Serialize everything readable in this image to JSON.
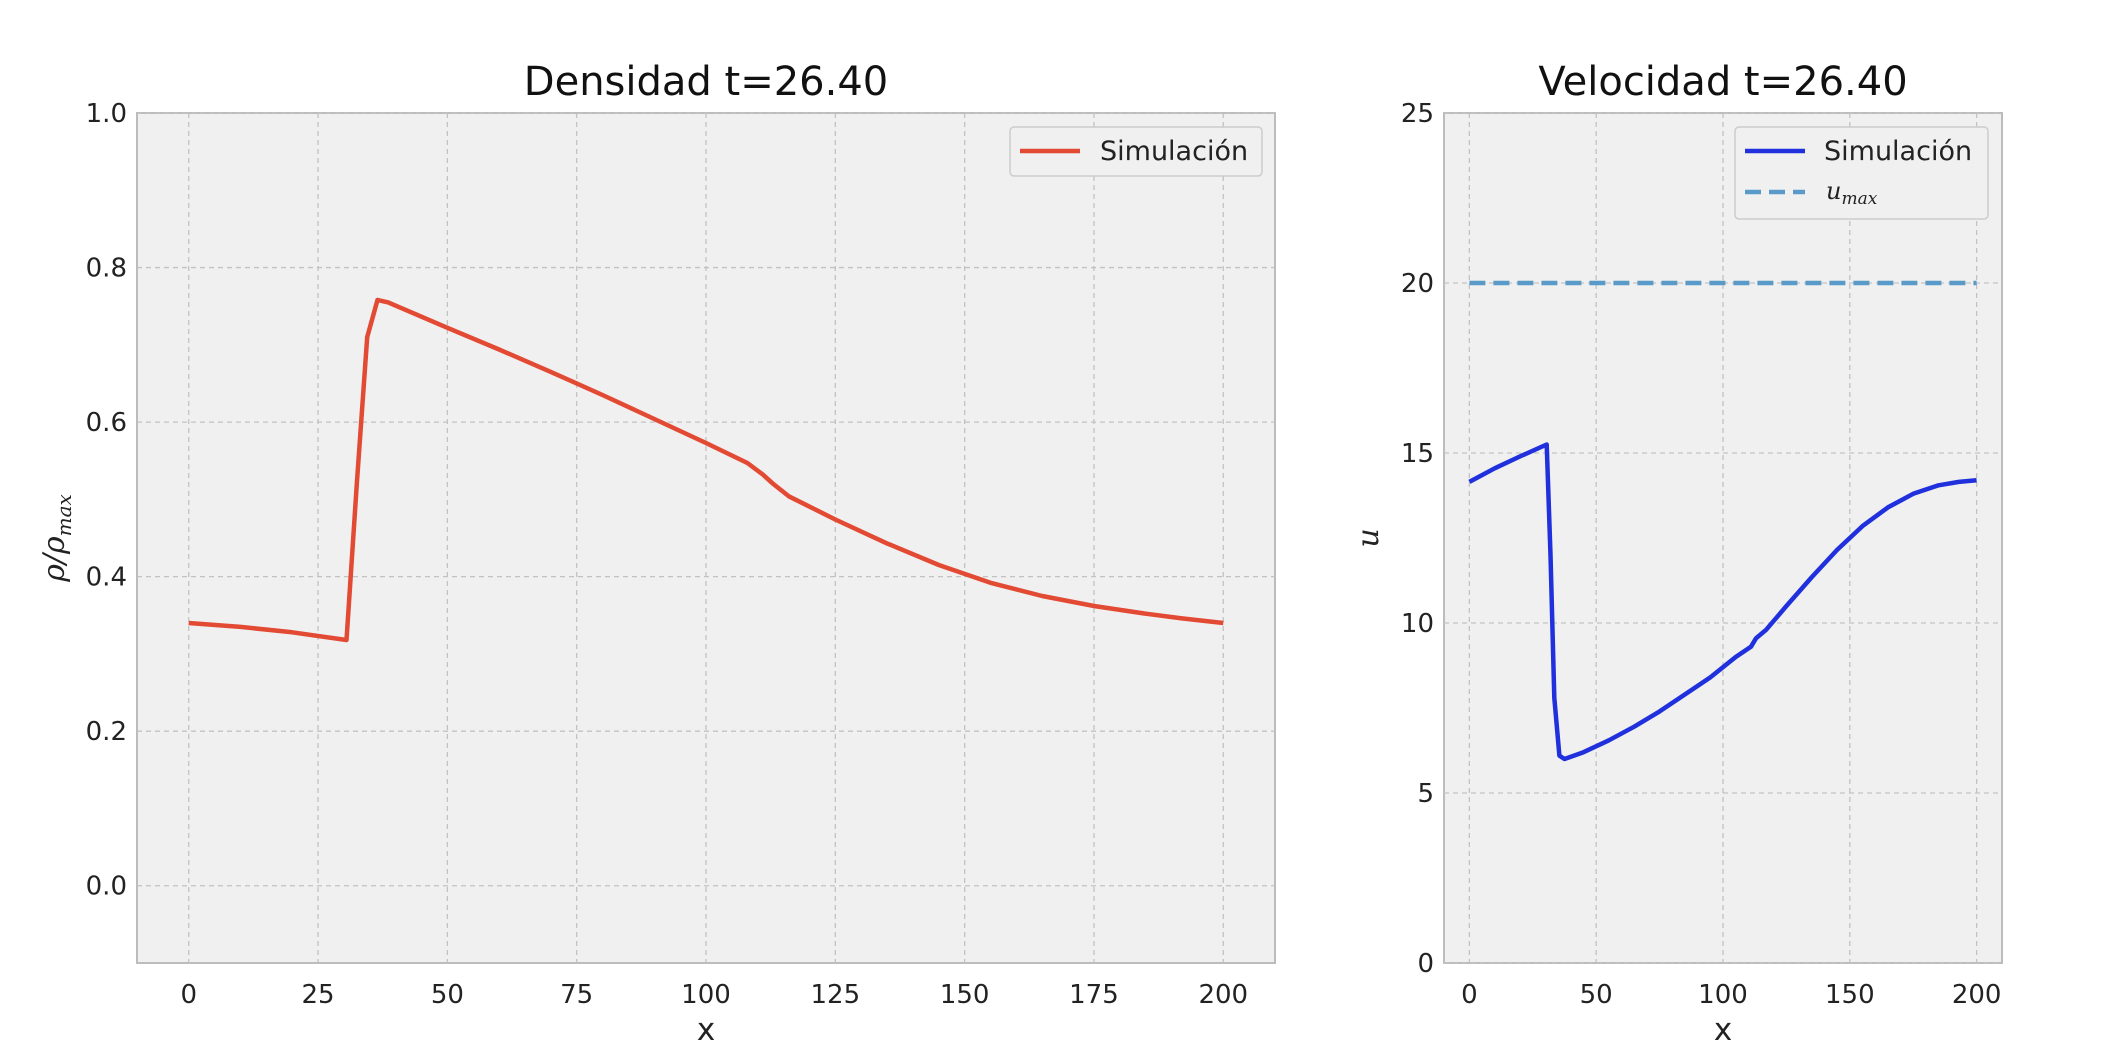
{
  "chart_data": [
    {
      "type": "line",
      "title": "Densidad t=26.40",
      "xlabel": "x",
      "ylabel": "ρ/ρ",
      "ylabel_sub": "max",
      "xlim": [
        -10,
        210
      ],
      "ylim": [
        -0.1,
        1.0
      ],
      "xticks": [
        0,
        25,
        50,
        75,
        100,
        125,
        150,
        175,
        200
      ],
      "yticks": [
        0.0,
        0.2,
        0.4,
        0.6,
        0.8,
        1.0
      ],
      "xtick_labels": [
        "0",
        "25",
        "50",
        "75",
        "100",
        "125",
        "150",
        "175",
        "200"
      ],
      "ytick_labels": [
        "0.0",
        "0.2",
        "0.4",
        "0.6",
        "0.8",
        "1.0"
      ],
      "grid": true,
      "legend": "top-right",
      "series": [
        {
          "name": "Simulación",
          "color": "#e24a33",
          "style": "solid",
          "x": [
            0,
            10,
            20,
            30.5,
            32.5,
            34.5,
            36.5,
            38.5,
            50,
            60,
            70,
            80,
            90,
            100,
            108,
            111,
            113,
            116,
            125,
            135,
            145,
            155,
            165,
            175,
            185,
            192,
            200
          ],
          "y": [
            0.34,
            0.335,
            0.328,
            0.318,
            0.52,
            0.71,
            0.758,
            0.755,
            0.722,
            0.694,
            0.665,
            0.635,
            0.604,
            0.573,
            0.547,
            0.532,
            0.52,
            0.504,
            0.474,
            0.443,
            0.415,
            0.392,
            0.375,
            0.362,
            0.352,
            0.346,
            0.34
          ]
        }
      ]
    },
    {
      "type": "line",
      "title": "Velocidad t=26.40",
      "xlabel": "x",
      "ylabel": "u",
      "xlim": [
        -10,
        210
      ],
      "ylim": [
        0,
        25
      ],
      "xticks": [
        0,
        50,
        100,
        150,
        200
      ],
      "yticks": [
        0,
        5,
        10,
        15,
        20,
        25
      ],
      "xtick_labels": [
        "0",
        "50",
        "100",
        "150",
        "200"
      ],
      "ytick_labels": [
        "0",
        "5",
        "10",
        "15",
        "20",
        "25"
      ],
      "grid": true,
      "legend": "top-right",
      "series": [
        {
          "name": "Simulación",
          "color": "#1f30dc",
          "style": "solid",
          "x": [
            0,
            10,
            20,
            30.5,
            32,
            33.5,
            35.5,
            37.5,
            45,
            55,
            65,
            75,
            85,
            95,
            105,
            111,
            113,
            117,
            125,
            135,
            145,
            155,
            165,
            175,
            185,
            193,
            200
          ],
          "y": [
            14.15,
            14.55,
            14.9,
            15.25,
            12.0,
            7.8,
            6.1,
            6.0,
            6.2,
            6.55,
            6.95,
            7.4,
            7.9,
            8.4,
            9.0,
            9.3,
            9.55,
            9.8,
            10.5,
            11.35,
            12.15,
            12.85,
            13.4,
            13.8,
            14.05,
            14.15,
            14.2
          ]
        },
        {
          "name": "u",
          "name_sub": "max",
          "color": "#5a9ac8",
          "style": "dashed",
          "x": [
            0,
            200
          ],
          "y": [
            20,
            20
          ]
        }
      ]
    }
  ]
}
